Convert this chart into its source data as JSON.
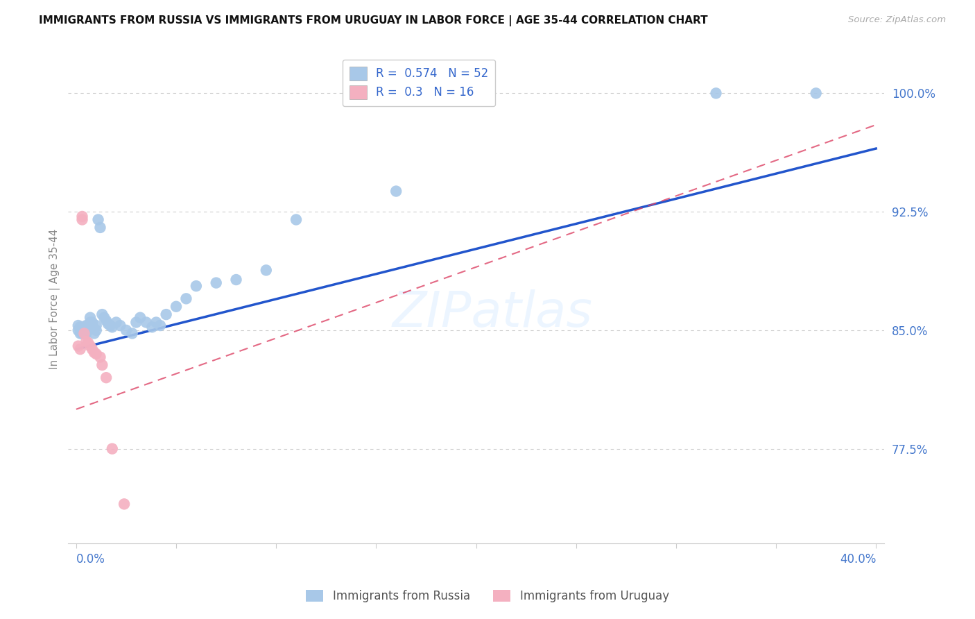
{
  "title": "IMMIGRANTS FROM RUSSIA VS IMMIGRANTS FROM URUGUAY IN LABOR FORCE | AGE 35-44 CORRELATION CHART",
  "source": "Source: ZipAtlas.com",
  "yaxis_label": "In Labor Force | Age 35-44",
  "legend_russia": "Immigrants from Russia",
  "legend_uruguay": "Immigrants from Uruguay",
  "R_russia": 0.574,
  "N_russia": 52,
  "R_uruguay": 0.3,
  "N_uruguay": 16,
  "russia_color": "#a8c8e8",
  "uruguay_color": "#f4b0c0",
  "russia_line_color": "#2255cc",
  "uruguay_line_color": "#dd4466",
  "russia_x": [
    0.001,
    0.001,
    0.002,
    0.002,
    0.003,
    0.003,
    0.003,
    0.004,
    0.004,
    0.004,
    0.005,
    0.005,
    0.005,
    0.006,
    0.006,
    0.007,
    0.007,
    0.008,
    0.008,
    0.009,
    0.009,
    0.01,
    0.01,
    0.011,
    0.012,
    0.013,
    0.014,
    0.015,
    0.016,
    0.017,
    0.018,
    0.02,
    0.022,
    0.025,
    0.028,
    0.03,
    0.032,
    0.035,
    0.038,
    0.04,
    0.042,
    0.045,
    0.05,
    0.055,
    0.06,
    0.07,
    0.08,
    0.095,
    0.11,
    0.16,
    0.32,
    0.37
  ],
  "russia_y": [
    0.85,
    0.853,
    0.848,
    0.852,
    0.848,
    0.85,
    0.852,
    0.848,
    0.85,
    0.852,
    0.848,
    0.85,
    0.853,
    0.85,
    0.853,
    0.855,
    0.858,
    0.855,
    0.853,
    0.851,
    0.848,
    0.85,
    0.853,
    0.92,
    0.915,
    0.86,
    0.858,
    0.856,
    0.854,
    0.853,
    0.852,
    0.855,
    0.853,
    0.85,
    0.848,
    0.855,
    0.858,
    0.855,
    0.852,
    0.855,
    0.853,
    0.86,
    0.865,
    0.87,
    0.878,
    0.88,
    0.882,
    0.888,
    0.92,
    0.938,
    1.0,
    1.0
  ],
  "uruguay_x": [
    0.001,
    0.002,
    0.003,
    0.003,
    0.004,
    0.005,
    0.006,
    0.007,
    0.008,
    0.009,
    0.01,
    0.012,
    0.013,
    0.015,
    0.018,
    0.024
  ],
  "uruguay_y": [
    0.84,
    0.838,
    0.92,
    0.922,
    0.848,
    0.843,
    0.842,
    0.84,
    0.838,
    0.836,
    0.835,
    0.833,
    0.828,
    0.82,
    0.775,
    0.74
  ],
  "xlim": [
    -0.004,
    0.404
  ],
  "ylim": [
    0.715,
    1.025
  ],
  "y_ticks": [
    0.775,
    0.85,
    0.925,
    1.0
  ],
  "y_tick_labels": [
    "77.5%",
    "85.0%",
    "92.5%",
    "100.0%"
  ],
  "x_tick_positions": [
    0.0,
    0.05,
    0.1,
    0.15,
    0.2,
    0.25,
    0.3,
    0.35,
    0.4
  ]
}
